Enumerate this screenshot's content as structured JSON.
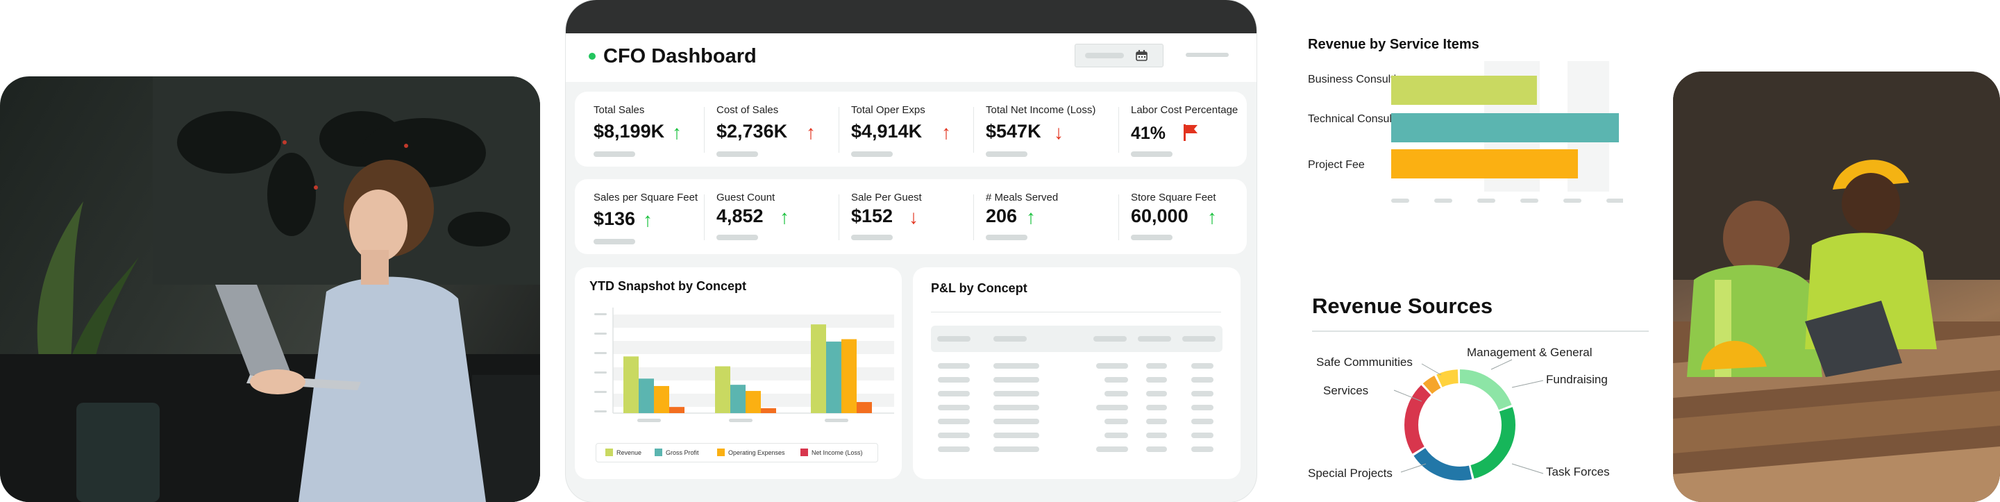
{
  "dashboard": {
    "title": "CFO Dashboard",
    "kpis_row1": [
      {
        "label": "Total Sales",
        "value": "$8,199K",
        "trend": "up"
      },
      {
        "label": "Cost of Sales",
        "value": "$2,736K",
        "trend": "up"
      },
      {
        "label": "Total Oper Exps",
        "value": "$4,914K",
        "trend": "up"
      },
      {
        "label": "Total Net Income (Loss)",
        "value": "$547K",
        "trend": "down"
      },
      {
        "label": "Labor Cost Percentage",
        "value": "41%",
        "trend": "flag"
      }
    ],
    "kpis_row2": [
      {
        "label": "Sales per Square Feet",
        "value": "$136",
        "trend": "up"
      },
      {
        "label": "Guest Count",
        "value": "4,852",
        "trend": "up"
      },
      {
        "label": "Sale Per Guest",
        "value": "$152",
        "trend": "down"
      },
      {
        "label": "# Meals Served",
        "value": "206",
        "trend": "up"
      },
      {
        "label": "Store Square Feet",
        "value": "60,000",
        "trend": "up"
      }
    ],
    "colors": {
      "up": "#16c03a",
      "down": "#e2331e",
      "flag": "#e2331e",
      "status_dot": "#22c55e"
    },
    "ytd_panel": {
      "title": "YTD Snapshot by Concept",
      "legend": [
        "Revenue",
        "Gross Profit",
        "Operating Expenses",
        "Net Income (Loss)"
      ]
    },
    "pl_panel": {
      "title": "P&L by Concept"
    }
  },
  "chart_data": [
    {
      "type": "bar",
      "title": "YTD Snapshot by Concept",
      "categories": [
        "",
        "",
        ""
      ],
      "series": [
        {
          "name": "Revenue",
          "color": "#c9d961",
          "values": [
            46,
            38,
            72
          ]
        },
        {
          "name": "Gross Profit",
          "color": "#5bb5b0",
          "values": [
            28,
            23,
            58
          ]
        },
        {
          "name": "Operating Expenses",
          "color": "#fbb012",
          "values": [
            22,
            18,
            60
          ]
        },
        {
          "name": "Net Income (Loss)",
          "color": "#f36e1f",
          "values": [
            5,
            4,
            9
          ]
        }
      ],
      "ylim": [
        0,
        80
      ],
      "grid": true
    },
    {
      "type": "bar",
      "orientation": "horizontal",
      "title": "Revenue by Service Items",
      "categories": [
        "Business Consulting",
        "Technical Consulting",
        "Project Fee"
      ],
      "series": [
        {
          "values": [
            64,
            100,
            82
          ],
          "colors": [
            "#c9d961",
            "#5bb5b0",
            "#fbb012"
          ]
        }
      ],
      "xlim": [
        0,
        100
      ]
    },
    {
      "type": "pie",
      "donut": true,
      "title": "Revenue Sources",
      "labels": [
        "Fundraising",
        "Task Forces",
        "Special Projects",
        "Services",
        "Safe Communities",
        "Management & General"
      ],
      "values": [
        17,
        23,
        17,
        19,
        4,
        6
      ],
      "colors": [
        "#8de5a6",
        "#16b65a",
        "#2277a8",
        "#d8364d",
        "#f6a52b",
        "#ffd23d"
      ]
    }
  ]
}
